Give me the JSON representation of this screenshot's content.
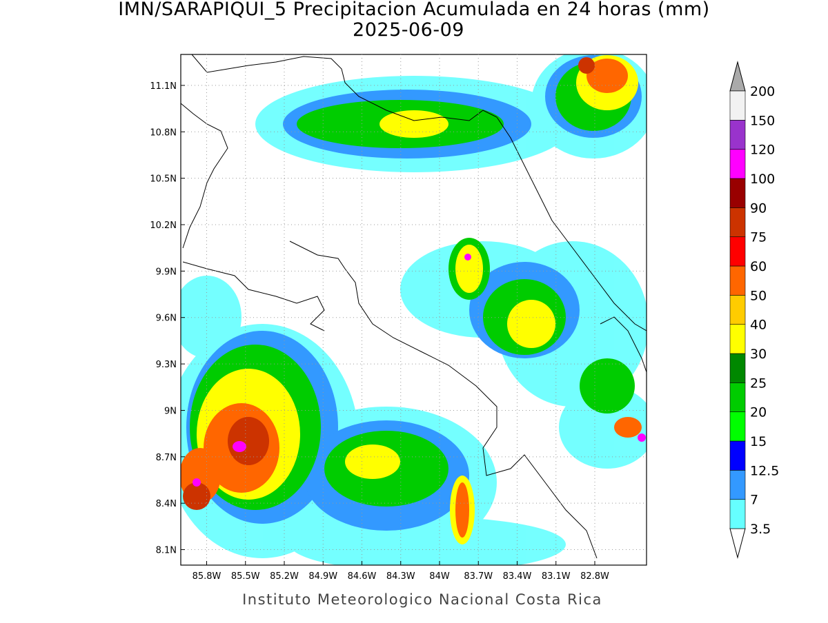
{
  "title": "IMN/SARAPIQUI_5 Precipitacion Acumulada en 24 horas (mm)",
  "subtitle": "2025-06-09",
  "map": {
    "latlim": [
      8.0,
      11.3
    ],
    "lonlim": [
      -86.0,
      -82.4
    ],
    "lat_ticks": [
      {
        "value": 11.1,
        "label": "11.1N"
      },
      {
        "value": 10.8,
        "label": "10.8N"
      },
      {
        "value": 10.5,
        "label": "10.5N"
      },
      {
        "value": 10.2,
        "label": "10.2N"
      },
      {
        "value": 9.9,
        "label": "9.9N"
      },
      {
        "value": 9.6,
        "label": "9.6N"
      },
      {
        "value": 9.3,
        "label": "9.3N"
      },
      {
        "value": 9,
        "label": "9N"
      },
      {
        "value": 8.7,
        "label": "8.7N"
      },
      {
        "value": 8.4,
        "label": "8.4N"
      },
      {
        "value": 8.1,
        "label": "8.1N"
      }
    ],
    "lon_ticks": [
      {
        "value": -85.8,
        "label": "85.8W"
      },
      {
        "value": -85.5,
        "label": "85.5W"
      },
      {
        "value": -85.2,
        "label": "85.2W"
      },
      {
        "value": -84.9,
        "label": "84.9W"
      },
      {
        "value": -84.6,
        "label": "84.6W"
      },
      {
        "value": -84.3,
        "label": "84.3W"
      },
      {
        "value": -84,
        "label": "84W"
      },
      {
        "value": -83.7,
        "label": "83.7W"
      },
      {
        "value": -83.4,
        "label": "83.4W"
      },
      {
        "value": -83.1,
        "label": "83.1W"
      },
      {
        "value": -82.8,
        "label": "82.8W"
      }
    ],
    "grid": true
  },
  "colorbar": {
    "levels": [
      3.5,
      7,
      12.5,
      15,
      20,
      25,
      30,
      40,
      50,
      60,
      75,
      90,
      100,
      120,
      150,
      200
    ],
    "colors": [
      "#ffffff",
      "#66ffff",
      "#3399ff",
      "#0000ff",
      "#00ff00",
      "#00cc00",
      "#008800",
      "#ffff00",
      "#ffcc00",
      "#ff6600",
      "#ff0000",
      "#cc3300",
      "#990000",
      "#ff00ff",
      "#9933cc",
      "#f2f2f2",
      "#aaaaaa"
    ]
  },
  "footer": "Instituto Meteorologico Nacional Costa Rica"
}
